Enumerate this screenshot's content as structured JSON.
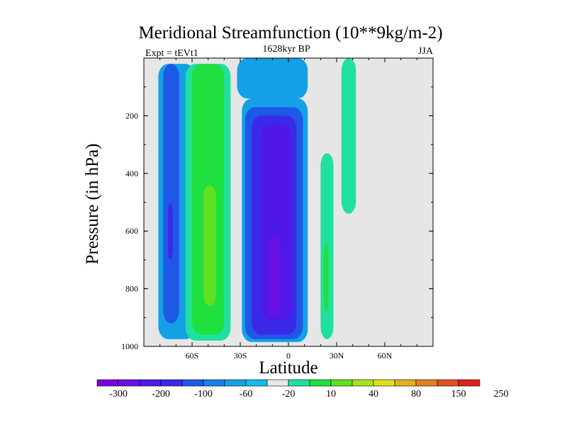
{
  "chart_data": {
    "type": "contour",
    "title": "Meridional Streamfunction (10**9kg/m-2)",
    "subtitle": "1628kyr BP",
    "left_label": "Expt = tEVt1",
    "right_label": "JJA",
    "xlabel": "Latitude",
    "ylabel": "Pressure (in hPa)",
    "xlim": [
      -90,
      90
    ],
    "ylim": [
      0,
      1000
    ],
    "y_inverted": true,
    "x_ticks": [
      {
        "value": -60,
        "label": "60S"
      },
      {
        "value": -30,
        "label": "30S"
      },
      {
        "value": 0,
        "label": "0"
      },
      {
        "value": 30,
        "label": "30N"
      },
      {
        "value": 60,
        "label": "60N"
      }
    ],
    "y_ticks": [
      {
        "value": 200,
        "label": "200"
      },
      {
        "value": 400,
        "label": "400"
      },
      {
        "value": 600,
        "label": "600"
      },
      {
        "value": 800,
        "label": "800"
      },
      {
        "value": 1000,
        "label": "1000"
      }
    ],
    "missing_color": "#e6e6e6",
    "colorbar": {
      "colors": [
        "#7a00e0",
        "#6a10e6",
        "#5018e8",
        "#3a2ae8",
        "#2058e6",
        "#1a80e6",
        "#14a0e6",
        "#14bce6",
        "#e8e8e8",
        "#20e0a0",
        "#20e040",
        "#60e020",
        "#a8e020",
        "#e0e020",
        "#e0b020",
        "#e08020",
        "#e05020",
        "#e02020"
      ],
      "tick_labels": [
        "-300",
        "-200",
        "-100",
        "-60",
        "-20",
        "10",
        "40",
        "80",
        "150",
        "250"
      ]
    },
    "regions": [
      {
        "name": "sh-polar-cell",
        "level": -20,
        "lat": [
          -81,
          -58
        ],
        "p": [
          20,
          975
        ]
      },
      {
        "name": "sh-polar-core",
        "level": -60,
        "lat": [
          -78,
          -68
        ],
        "p": [
          20,
          920
        ]
      },
      {
        "name": "sh-polar-inner",
        "level": -100,
        "lat": [
          -75,
          -72
        ],
        "p": [
          500,
          700
        ]
      },
      {
        "name": "ferrel-cell",
        "level": 10,
        "lat": [
          -64,
          -36
        ],
        "p": [
          20,
          980
        ]
      },
      {
        "name": "ferrel-core",
        "level": 40,
        "lat": [
          -60,
          -40
        ],
        "p": [
          20,
          960
        ]
      },
      {
        "name": "ferrel-max",
        "level": 80,
        "lat": [
          -53,
          -45
        ],
        "p": [
          440,
          860
        ]
      },
      {
        "name": "hadley-cell",
        "level": -20,
        "lat": [
          -29,
          12
        ],
        "p": [
          140,
          985
        ]
      },
      {
        "name": "hadley-level-60",
        "level": -60,
        "lat": [
          -27,
          9
        ],
        "p": [
          170,
          975
        ]
      },
      {
        "name": "hadley-level-100",
        "level": -100,
        "lat": [
          -23,
          5
        ],
        "p": [
          200,
          960
        ]
      },
      {
        "name": "hadley-level-200",
        "level": -200,
        "lat": [
          -17,
          2
        ],
        "p": [
          230,
          910
        ]
      },
      {
        "name": "hadley-level-300",
        "level": -300,
        "lat": [
          -12,
          -5
        ],
        "p": [
          620,
          900
        ]
      },
      {
        "name": "nh-tropical-cell",
        "level": 10,
        "lat": [
          20,
          28
        ],
        "p": [
          330,
          975
        ]
      },
      {
        "name": "nh-tropical-core",
        "level": 40,
        "lat": [
          22,
          25
        ],
        "p": [
          640,
          880
        ]
      },
      {
        "name": "strat-cell-equator",
        "level": -20,
        "lat": [
          -32,
          12
        ],
        "p": [
          0,
          140
        ]
      },
      {
        "name": "nh-strat-streak",
        "level": 10,
        "lat": [
          33,
          42
        ],
        "p": [
          0,
          540
        ]
      }
    ]
  }
}
